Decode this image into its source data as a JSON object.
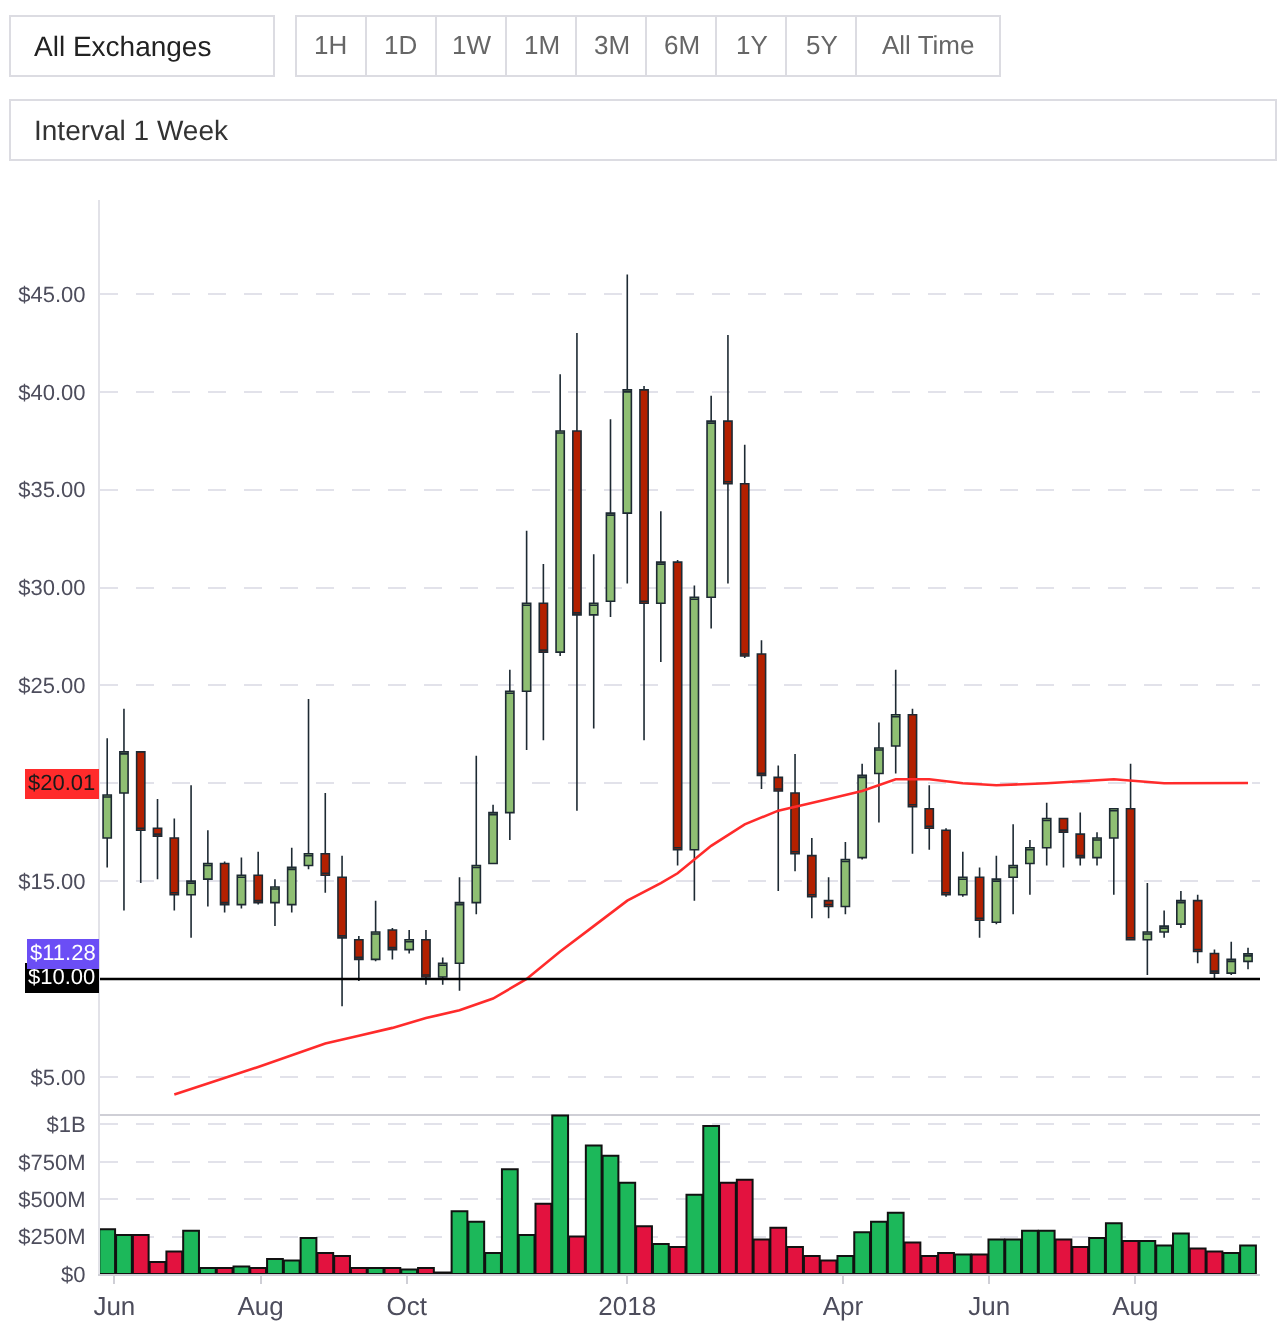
{
  "chart_data": [
    {
      "type": "other",
      "annotations": [
        "All Exchanges",
        "1H",
        "1D",
        "1W",
        "1M",
        "3M",
        "6M",
        "1Y",
        "5Y",
        "All Time",
        "Interval 1 Week"
      ]
    },
    {
      "type": "candlestick",
      "x": [
        "2017-05-29",
        "2017-06-05",
        "2017-06-12",
        "2017-06-19",
        "2017-06-26",
        "2017-07-03",
        "2017-07-10",
        "2017-07-17",
        "2017-07-24",
        "2017-07-31",
        "2017-08-07",
        "2017-08-14",
        "2017-08-21",
        "2017-08-28",
        "2017-09-04",
        "2017-09-11",
        "2017-09-18",
        "2017-09-25",
        "2017-10-02",
        "2017-10-09",
        "2017-10-16",
        "2017-10-23",
        "2017-10-30",
        "2017-11-06",
        "2017-11-13",
        "2017-11-20",
        "2017-11-27",
        "2017-12-04",
        "2017-12-11",
        "2017-12-18",
        "2017-12-25",
        "2018-01-01",
        "2018-01-08",
        "2018-01-15",
        "2018-01-22",
        "2018-01-29",
        "2018-02-05",
        "2018-02-12",
        "2018-02-19",
        "2018-02-26",
        "2018-03-05",
        "2018-03-12",
        "2018-03-19",
        "2018-03-26",
        "2018-04-02",
        "2018-04-09",
        "2018-04-16",
        "2018-04-23",
        "2018-04-30",
        "2018-05-07",
        "2018-05-14",
        "2018-05-21",
        "2018-05-28",
        "2018-06-04",
        "2018-06-11",
        "2018-06-18",
        "2018-06-25",
        "2018-07-02",
        "2018-07-09",
        "2018-07-16",
        "2018-07-23",
        "2018-07-30",
        "2018-08-06",
        "2018-08-13",
        "2018-08-20",
        "2018-08-27",
        "2018-09-03",
        "2018-09-10",
        "2018-09-17"
      ],
      "ohlc": [
        [
          17.2,
          22.3,
          15.7,
          19.4
        ],
        [
          19.5,
          23.8,
          13.5,
          21.6
        ],
        [
          21.6,
          21.6,
          14.9,
          17.6
        ],
        [
          17.7,
          19.2,
          15.1,
          17.3
        ],
        [
          17.2,
          18.2,
          13.5,
          14.3
        ],
        [
          14.3,
          19.9,
          12.1,
          15.0
        ],
        [
          15.1,
          17.6,
          13.7,
          15.9
        ],
        [
          15.9,
          16.0,
          13.4,
          13.8
        ],
        [
          13.8,
          16.2,
          13.6,
          15.3
        ],
        [
          15.3,
          16.5,
          13.8,
          13.9
        ],
        [
          13.9,
          15.1,
          12.7,
          14.7
        ],
        [
          13.8,
          16.7,
          13.4,
          15.7
        ],
        [
          15.8,
          24.3,
          15.6,
          16.4
        ],
        [
          16.4,
          19.5,
          14.4,
          15.3
        ],
        [
          15.2,
          16.3,
          8.6,
          12.1
        ],
        [
          12.0,
          12.2,
          9.9,
          11.0
        ],
        [
          11.0,
          14.0,
          10.9,
          12.4
        ],
        [
          12.5,
          12.6,
          11.0,
          11.5
        ],
        [
          11.5,
          12.5,
          11.3,
          12.0
        ],
        [
          12.0,
          12.5,
          9.7,
          10.1
        ],
        [
          10.1,
          11.1,
          9.7,
          10.8
        ],
        [
          10.8,
          15.2,
          9.4,
          13.9
        ],
        [
          13.9,
          21.4,
          13.3,
          15.8
        ],
        [
          15.9,
          18.9,
          15.9,
          18.5
        ],
        [
          18.5,
          25.8,
          17.1,
          24.7
        ],
        [
          24.7,
          32.9,
          21.7,
          29.2
        ],
        [
          29.2,
          31.2,
          22.2,
          26.7
        ],
        [
          26.7,
          40.9,
          26.5,
          38.0
        ],
        [
          38.0,
          43.0,
          18.6,
          28.6
        ],
        [
          28.6,
          31.7,
          22.8,
          29.2
        ],
        [
          29.3,
          38.6,
          28.5,
          33.8
        ],
        [
          33.8,
          46.0,
          30.2,
          40.1
        ],
        [
          40.1,
          40.3,
          22.2,
          29.2
        ],
        [
          29.2,
          33.9,
          26.2,
          31.3
        ],
        [
          31.3,
          31.4,
          15.8,
          16.6
        ],
        [
          16.6,
          30.1,
          14.0,
          29.5
        ],
        [
          29.5,
          39.8,
          27.9,
          38.5
        ],
        [
          38.5,
          42.9,
          30.2,
          35.3
        ],
        [
          35.3,
          37.3,
          26.4,
          26.5
        ],
        [
          26.6,
          27.3,
          19.7,
          20.4
        ],
        [
          20.3,
          20.9,
          14.5,
          19.6
        ],
        [
          19.5,
          21.5,
          15.5,
          16.4
        ],
        [
          16.3,
          17.2,
          13.1,
          14.2
        ],
        [
          14.0,
          15.2,
          13.1,
          13.7
        ],
        [
          13.7,
          17.0,
          13.3,
          16.1
        ],
        [
          16.2,
          21.0,
          16.1,
          20.4
        ],
        [
          20.5,
          23.1,
          18.0,
          21.8
        ],
        [
          21.9,
          25.8,
          20.5,
          23.5
        ],
        [
          23.5,
          23.8,
          16.4,
          18.8
        ],
        [
          18.7,
          19.9,
          16.6,
          17.7
        ],
        [
          17.6,
          17.7,
          14.2,
          14.3
        ],
        [
          14.3,
          16.5,
          14.2,
          15.2
        ],
        [
          15.2,
          15.7,
          12.1,
          13.0
        ],
        [
          12.9,
          16.3,
          12.8,
          15.1
        ],
        [
          15.2,
          17.9,
          13.3,
          15.8
        ],
        [
          15.9,
          17.1,
          14.3,
          16.7
        ],
        [
          16.7,
          19.0,
          15.8,
          18.2
        ],
        [
          18.2,
          18.2,
          15.7,
          17.5
        ],
        [
          17.4,
          18.5,
          15.8,
          16.2
        ],
        [
          16.2,
          17.5,
          15.8,
          17.2
        ],
        [
          17.2,
          18.7,
          14.3,
          18.7
        ],
        [
          18.7,
          21.0,
          12.0,
          12.0
        ],
        [
          12.0,
          14.9,
          10.2,
          12.4
        ],
        [
          12.4,
          13.5,
          12.1,
          12.7
        ],
        [
          12.8,
          14.5,
          12.6,
          14.0
        ],
        [
          14.0,
          14.3,
          10.8,
          11.4
        ],
        [
          11.3,
          11.5,
          10.0,
          10.3
        ],
        [
          10.3,
          11.9,
          10.2,
          11.0
        ],
        [
          10.9,
          11.6,
          10.5,
          11.28
        ]
      ],
      "colors": [
        "#8fbf73",
        "#8fbf73",
        "#b22000",
        "#b22000",
        "#b22000",
        "#8fbf73",
        "#8fbf73",
        "#b22000",
        "#8fbf73",
        "#b22000",
        "#8fbf73",
        "#8fbf73",
        "#8fbf73",
        "#b22000",
        "#b22000",
        "#b22000",
        "#8fbf73",
        "#b22000",
        "#8fbf73",
        "#b22000",
        "#8fbf73",
        "#8fbf73",
        "#8fbf73",
        "#8fbf73",
        "#8fbf73",
        "#8fbf73",
        "#b22000",
        "#8fbf73",
        "#b22000",
        "#8fbf73",
        "#8fbf73",
        "#8fbf73",
        "#b22000",
        "#8fbf73",
        "#b22000",
        "#8fbf73",
        "#8fbf73",
        "#b22000",
        "#b22000",
        "#b22000",
        "#b22000",
        "#b22000",
        "#b22000",
        "#b22000",
        "#8fbf73",
        "#8fbf73",
        "#8fbf73",
        "#8fbf73",
        "#b22000",
        "#b22000",
        "#b22000",
        "#8fbf73",
        "#b22000",
        "#8fbf73",
        "#8fbf73",
        "#8fbf73",
        "#8fbf73",
        "#b22000",
        "#b22000",
        "#8fbf73",
        "#8fbf73",
        "#b22000",
        "#8fbf73",
        "#8fbf73",
        "#8fbf73",
        "#b22000",
        "#b22000",
        "#8fbf73",
        "#8fbf73"
      ],
      "series": [
        {
          "type": "line",
          "color": "#ff2b2b",
          "x": [
            "2017-06-26",
            "2017-07-31",
            "2017-08-28",
            "2017-09-11",
            "2017-09-25",
            "2017-10-09",
            "2017-10-23",
            "2017-11-06",
            "2017-11-20",
            "2017-12-04",
            "2017-12-18",
            "2018-01-01",
            "2018-01-15",
            "2018-01-22",
            "2018-02-05",
            "2018-02-19",
            "2018-03-05",
            "2018-03-26",
            "2018-04-09",
            "2018-04-23",
            "2018-05-07",
            "2018-05-21",
            "2018-06-04",
            "2018-06-25",
            "2018-07-23",
            "2018-08-13",
            "2018-09-17"
          ],
          "values": [
            4.1,
            5.5,
            6.7,
            7.1,
            7.5,
            8.0,
            8.4,
            9.0,
            10.0,
            11.4,
            12.7,
            14.0,
            14.9,
            15.4,
            16.8,
            17.9,
            18.6,
            19.2,
            19.6,
            20.2,
            20.2,
            20.0,
            19.9,
            20.0,
            20.2,
            20.0,
            20.01
          ]
        }
      ],
      "xlim": [
        "2017-05-26",
        "2018-09-22"
      ],
      "ylim": [
        3.1,
        49.8
      ],
      "yticks": [
        {
          "value": 5,
          "label": "$5.00"
        },
        {
          "value": 10,
          "label": null
        },
        {
          "value": 15,
          "label": "$15.00"
        },
        {
          "value": 20,
          "label": null
        },
        {
          "value": 25,
          "label": "$25.00"
        },
        {
          "value": 30,
          "label": "$30.00"
        },
        {
          "value": 35,
          "label": "$35.00"
        },
        {
          "value": 40,
          "label": "$40.00"
        },
        {
          "value": 45,
          "label": "$45.00"
        }
      ],
      "ref_lines": [
        {
          "axis": "y",
          "value": 10,
          "label": "$10.00",
          "color": "#000000"
        }
      ],
      "annotations": [
        "$20.01",
        "$11.28"
      ],
      "grid": "y",
      "tick_labels": "y"
    },
    {
      "type": "bar",
      "x": [
        "2017-05-29",
        "2017-06-05",
        "2017-06-12",
        "2017-06-19",
        "2017-06-26",
        "2017-07-03",
        "2017-07-10",
        "2017-07-17",
        "2017-07-24",
        "2017-07-31",
        "2017-08-07",
        "2017-08-14",
        "2017-08-21",
        "2017-08-28",
        "2017-09-04",
        "2017-09-11",
        "2017-09-18",
        "2017-09-25",
        "2017-10-02",
        "2017-10-09",
        "2017-10-16",
        "2017-10-23",
        "2017-10-30",
        "2017-11-06",
        "2017-11-13",
        "2017-11-20",
        "2017-11-27",
        "2017-12-04",
        "2017-12-11",
        "2017-12-18",
        "2017-12-25",
        "2018-01-01",
        "2018-01-08",
        "2018-01-15",
        "2018-01-22",
        "2018-01-29",
        "2018-02-05",
        "2018-02-12",
        "2018-02-19",
        "2018-02-26",
        "2018-03-05",
        "2018-03-12",
        "2018-03-19",
        "2018-03-26",
        "2018-04-02",
        "2018-04-09",
        "2018-04-16",
        "2018-04-23",
        "2018-04-30",
        "2018-05-07",
        "2018-05-14",
        "2018-05-21",
        "2018-05-28",
        "2018-06-04",
        "2018-06-11",
        "2018-06-18",
        "2018-06-25",
        "2018-07-02",
        "2018-07-09",
        "2018-07-16",
        "2018-07-23",
        "2018-07-30",
        "2018-08-06",
        "2018-08-13",
        "2018-08-20",
        "2018-08-27",
        "2018-09-03",
        "2018-09-10",
        "2018-09-17"
      ],
      "values": [
        300000000,
        260000000,
        260000000,
        80000000,
        150000000,
        290000000,
        40000000,
        40000000,
        50000000,
        40000000,
        100000000,
        90000000,
        240000000,
        140000000,
        120000000,
        40000000,
        40000000,
        40000000,
        30000000,
        40000000,
        10000000,
        420000000,
        350000000,
        140000000,
        700000000,
        260000000,
        470000000,
        1060000000,
        250000000,
        860000000,
        790000000,
        610000000,
        320000000,
        200000000,
        180000000,
        530000000,
        990000000,
        610000000,
        630000000,
        230000000,
        310000000,
        180000000,
        120000000,
        90000000,
        120000000,
        280000000,
        350000000,
        410000000,
        210000000,
        120000000,
        140000000,
        130000000,
        130000000,
        230000000,
        230000000,
        290000000,
        290000000,
        230000000,
        180000000,
        240000000,
        340000000,
        220000000,
        220000000,
        190000000,
        270000000,
        170000000,
        150000000,
        140000000,
        190000000
      ],
      "colors": [
        "#1cb85a",
        "#1cb85a",
        "#e3123f",
        "#e3123f",
        "#e3123f",
        "#1cb85a",
        "#1cb85a",
        "#e3123f",
        "#1cb85a",
        "#e3123f",
        "#1cb85a",
        "#1cb85a",
        "#1cb85a",
        "#e3123f",
        "#e3123f",
        "#e3123f",
        "#1cb85a",
        "#e3123f",
        "#1cb85a",
        "#e3123f",
        "#1cb85a",
        "#1cb85a",
        "#1cb85a",
        "#1cb85a",
        "#1cb85a",
        "#1cb85a",
        "#e3123f",
        "#1cb85a",
        "#e3123f",
        "#1cb85a",
        "#1cb85a",
        "#1cb85a",
        "#e3123f",
        "#1cb85a",
        "#e3123f",
        "#1cb85a",
        "#1cb85a",
        "#e3123f",
        "#e3123f",
        "#e3123f",
        "#e3123f",
        "#e3123f",
        "#e3123f",
        "#e3123f",
        "#1cb85a",
        "#1cb85a",
        "#1cb85a",
        "#1cb85a",
        "#e3123f",
        "#e3123f",
        "#e3123f",
        "#1cb85a",
        "#e3123f",
        "#1cb85a",
        "#1cb85a",
        "#1cb85a",
        "#1cb85a",
        "#e3123f",
        "#e3123f",
        "#1cb85a",
        "#1cb85a",
        "#e3123f",
        "#1cb85a",
        "#1cb85a",
        "#1cb85a",
        "#e3123f",
        "#e3123f",
        "#1cb85a",
        "#1cb85a"
      ],
      "xlim": [
        "2017-05-26",
        "2018-09-22"
      ],
      "xticks": [
        {
          "value": "2017-06-01",
          "label": "Jun"
        },
        {
          "value": "2017-08-01",
          "label": "Aug"
        },
        {
          "value": "2017-10-01",
          "label": "Oct"
        },
        {
          "value": "2018-01-01",
          "label": "2018"
        },
        {
          "value": "2018-04-01",
          "label": "Apr"
        },
        {
          "value": "2018-06-01",
          "label": "Jun"
        },
        {
          "value": "2018-08-01",
          "label": "Aug"
        }
      ],
      "ylim": [
        0,
        1070000000
      ],
      "yticks": [
        {
          "value": 0,
          "label": "$0"
        },
        {
          "value": 250000000,
          "label": "$250M"
        },
        {
          "value": 500000000,
          "label": "$500M"
        },
        {
          "value": 750000000,
          "label": "$750M"
        },
        {
          "value": 1000000000,
          "label": "$1B"
        }
      ],
      "grid": "y"
    }
  ]
}
